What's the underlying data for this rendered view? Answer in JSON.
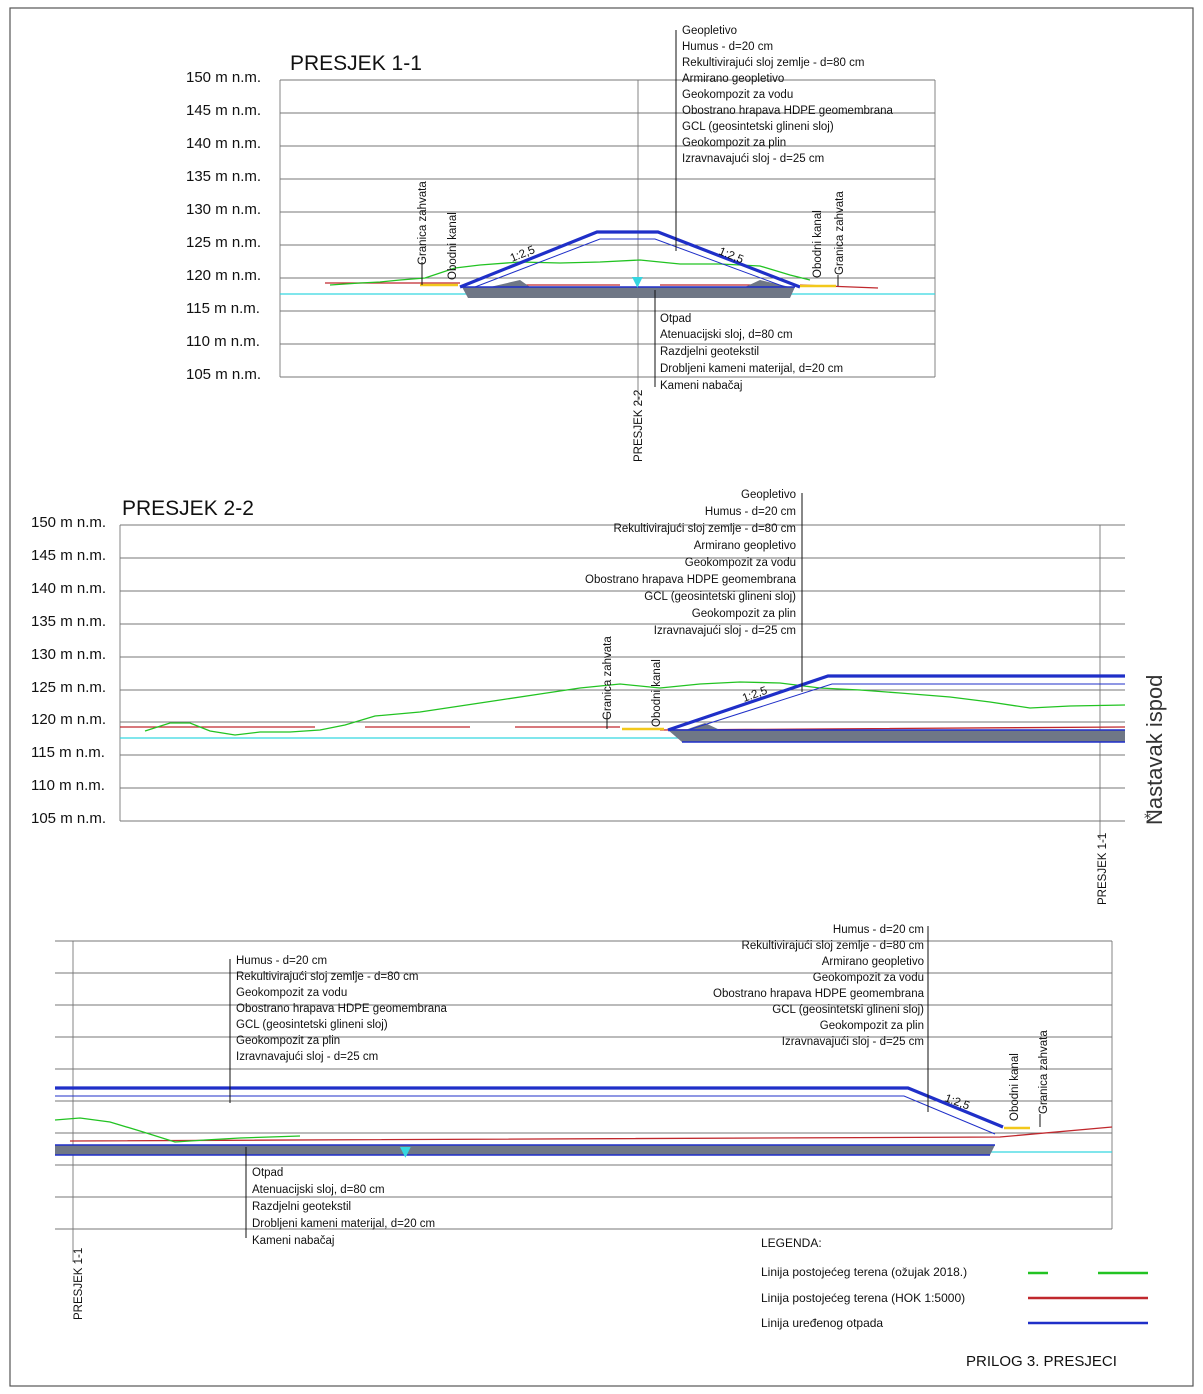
{
  "section1": {
    "title": "PRESJEK 1-1",
    "levels": [
      "150 m n.m.",
      "145 m n.m.",
      "140 m n.m.",
      "135 m n.m.",
      "130 m n.m.",
      "125 m n.m.",
      "120 m n.m.",
      "115 m n.m.",
      "110 m n.m.",
      "105 m n.m."
    ],
    "top_layers": [
      "Geopletivo",
      "Humus - d=20 cm",
      "Rekultivirajući sloj zemlje - d=80 cm",
      "Armirano geopletivo",
      "Geokompozit za vodu",
      "Obostrano hrapava HDPE geomembrana",
      "GCL (geosintetski glineni sloj)",
      "Geokompozit za plin",
      "Izravnavajući sloj - d=25 cm"
    ],
    "bottom_layers": [
      "Otpad",
      "Atenuacijski sloj, d=80 cm",
      "Razdjelni geotekstil",
      "Drobljeni kameni materijal, d=20 cm",
      "Kameni nabačaj"
    ],
    "left_labels": [
      "Granica zahvata",
      "Obodni kanal"
    ],
    "right_labels": [
      "Obodni kanal",
      "Granica zahvata"
    ],
    "slope_left": "1:2,5",
    "slope_right": "1:2,5",
    "cut_label": "PRESJEK 2-2"
  },
  "section2": {
    "title": "PRESJEK 2-2",
    "levels": [
      "150 m n.m.",
      "145 m n.m.",
      "140 m n.m.",
      "135 m n.m.",
      "130 m n.m.",
      "125 m n.m.",
      "120 m n.m.",
      "115 m n.m.",
      "110 m n.m.",
      "105 m n.m."
    ],
    "top_layers": [
      "Geopletivo",
      "Humus - d=20 cm",
      "Rekultivirajući sloj zemlje - d=80 cm",
      "Armirano geopletivo",
      "Geokompozit za vodu",
      "Obostrano hrapava HDPE geomembrana",
      "GCL (geosintetski glineni sloj)",
      "Geokompozit za plin",
      "Izravnavajući sloj - d=25 cm"
    ],
    "labels": [
      "Granica zahvata",
      "Obodni kanal"
    ],
    "slope": "1:2,5",
    "cut_label": "PRESJEK 1-1",
    "continuation": "Nastavak ispod"
  },
  "section3": {
    "left_layers": [
      "Humus - d=20 cm",
      "Rekultivirajući sloj zemlje - d=80 cm",
      "Geokompozit za vodu",
      "Obostrano hrapava HDPE geomembrana",
      "GCL (geosintetski glineni sloj)",
      "Geokompozit za plin",
      "Izravnavajući sloj - d=25 cm"
    ],
    "right_layers": [
      "Humus - d=20 cm",
      "Rekultivirajući sloj zemlje - d=80 cm",
      "Armirano geopletivo",
      "Geokompozit za vodu",
      "Obostrano hrapava HDPE geomembrana",
      "GCL (geosintetski glineni sloj)",
      "Geokompozit za plin",
      "Izravnavajući sloj - d=25 cm"
    ],
    "bottom_layers": [
      "Otpad",
      "Atenuacijski sloj, d=80 cm",
      "Razdjelni geotekstil",
      "Drobljeni kameni materijal, d=20 cm",
      "Kameni nabačaj"
    ],
    "labels": [
      "Obodni kanal",
      "Granica zahvata"
    ],
    "slope": "1:2,5",
    "cut_label": "PRESJEK 1-1"
  },
  "legend": {
    "title": "LEGENDA:",
    "items": [
      {
        "label": "Linija postojećeg terena (ožujak 2018.)",
        "color": "#22c322"
      },
      {
        "label": "Linija postojećeg terena (HOK 1:5000)",
        "color": "#c0282d"
      },
      {
        "label": "Linija uređenog otpada",
        "color": "#1f2fc8"
      }
    ]
  },
  "footer": "PRILOG 3. PRESJECI",
  "colors": {
    "terrain_survey": "#22c322",
    "terrain_hok": "#c0282d",
    "waste_line": "#1f2fc8",
    "water": "#35d6e0",
    "fill": "#6f7786",
    "yellow": "#f2c81b"
  }
}
